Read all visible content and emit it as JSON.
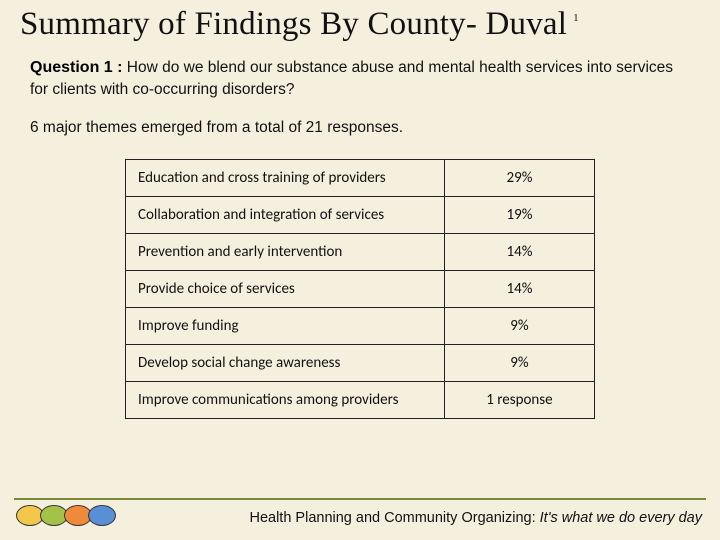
{
  "title": "Summary of Findings By County- Duval",
  "title_super": "1",
  "question": {
    "label": "Question 1 :",
    "text": " How do we blend our substance abuse and mental health services into services for clients with co-occurring disorders?"
  },
  "summary_line": "6 major themes emerged from a total of 21 responses.",
  "table": {
    "type": "table",
    "columns": [
      "theme",
      "percent"
    ],
    "col_widths_pct": [
      68,
      32
    ],
    "border_color": "#222222",
    "background_color": "#f5f0de",
    "font_family": "Calibri",
    "font_size_pt": 11,
    "rows": [
      {
        "theme": "Education and cross training of providers",
        "percent": "29%"
      },
      {
        "theme": "Collaboration and integration of services",
        "percent": "19%"
      },
      {
        "theme": "Prevention and early intervention",
        "percent": "14%"
      },
      {
        "theme": "Provide choice of services",
        "percent": "14%"
      },
      {
        "theme": "Improve funding",
        "percent": "9%"
      },
      {
        "theme": "Develop social change awareness",
        "percent": "9%"
      },
      {
        "theme": "Improve communications among providers",
        "percent": "1 response"
      }
    ]
  },
  "footer": {
    "rule_color": "#7a8a3a",
    "ovals": [
      "#f2c74a",
      "#a3c24a",
      "#f08a3a",
      "#5a8fd6"
    ],
    "text_plain": "Health Planning and Community Organizing:",
    "text_em": " It's what we do every day"
  },
  "colors": {
    "page_bg": "#f5f0de",
    "text": "#111111"
  }
}
